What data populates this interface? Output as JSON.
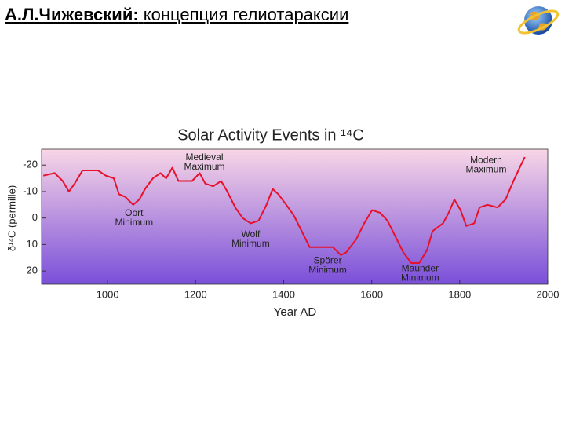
{
  "header": {
    "name": "А.Л.Чижевский:",
    "subtitle": "концепция гелиотараксии"
  },
  "chart_data": {
    "type": "line",
    "title": "Solar Activity Events in ¹⁴C",
    "x_label": "Year AD",
    "y_label": "δ¹⁴C (permille)",
    "x": [
      854,
      880,
      898,
      912,
      925,
      943,
      960,
      978,
      996,
      1014,
      1026,
      1040,
      1058,
      1072,
      1085,
      1103,
      1120,
      1133,
      1147,
      1161,
      1174,
      1192,
      1209,
      1222,
      1240,
      1258,
      1272,
      1290,
      1307,
      1325,
      1343,
      1361,
      1375,
      1388,
      1406,
      1423,
      1441,
      1459,
      1485,
      1512,
      1530,
      1542,
      1565,
      1583,
      1601,
      1619,
      1636,
      1654,
      1672,
      1690,
      1708,
      1726,
      1738,
      1762,
      1775,
      1788,
      1802,
      1815,
      1833,
      1845,
      1863,
      1886,
      1904,
      1922,
      1939,
      1948
    ],
    "series": [
      {
        "color": "#e8102a",
        "values": [
          -16,
          -17,
          -14,
          -10,
          -13,
          -18,
          -18,
          -18,
          -16,
          -15,
          -9,
          -8,
          -5,
          -7,
          -11,
          -15,
          -17,
          -15,
          -19,
          -14,
          -14,
          -14,
          -17,
          -13,
          -12,
          -14,
          -10,
          -4,
          0,
          2,
          1,
          -5,
          -11,
          -9,
          -5,
          -1,
          5,
          11,
          11,
          11,
          14,
          13,
          8,
          2,
          -3,
          -2,
          1,
          7,
          13,
          17,
          17,
          12,
          5,
          2,
          -2,
          -7,
          -3,
          3,
          2,
          -4,
          -5,
          -4,
          -7,
          -14,
          -20,
          -23
        ]
      }
    ],
    "xlim": [
      850,
      2000
    ],
    "xticks": [
      1000,
      1200,
      1400,
      1600,
      1800,
      2000
    ],
    "ylim": [
      -26,
      25
    ],
    "yticks": [
      -20,
      -10,
      0,
      10,
      20
    ],
    "y_inverted": true,
    "grid": false,
    "background": [
      "#f8d6e6",
      "#7a4fd9"
    ],
    "annotations": [
      {
        "lines": [
          "Medieval",
          "Maximum"
        ],
        "x": 1220,
        "y": -21
      },
      {
        "lines": [
          "Oort",
          "Minimum"
        ],
        "x": 1060,
        "y": 0
      },
      {
        "lines": [
          "Wolf",
          "Minimum"
        ],
        "x": 1325,
        "y": 8
      },
      {
        "lines": [
          "Spörer",
          "Minimum"
        ],
        "x": 1500,
        "y": 18
      },
      {
        "lines": [
          "Maunder",
          "Minimum"
        ],
        "x": 1710,
        "y": 21
      },
      {
        "lines": [
          "Modern",
          "Maximum"
        ],
        "x": 1860,
        "y": -20
      }
    ]
  }
}
